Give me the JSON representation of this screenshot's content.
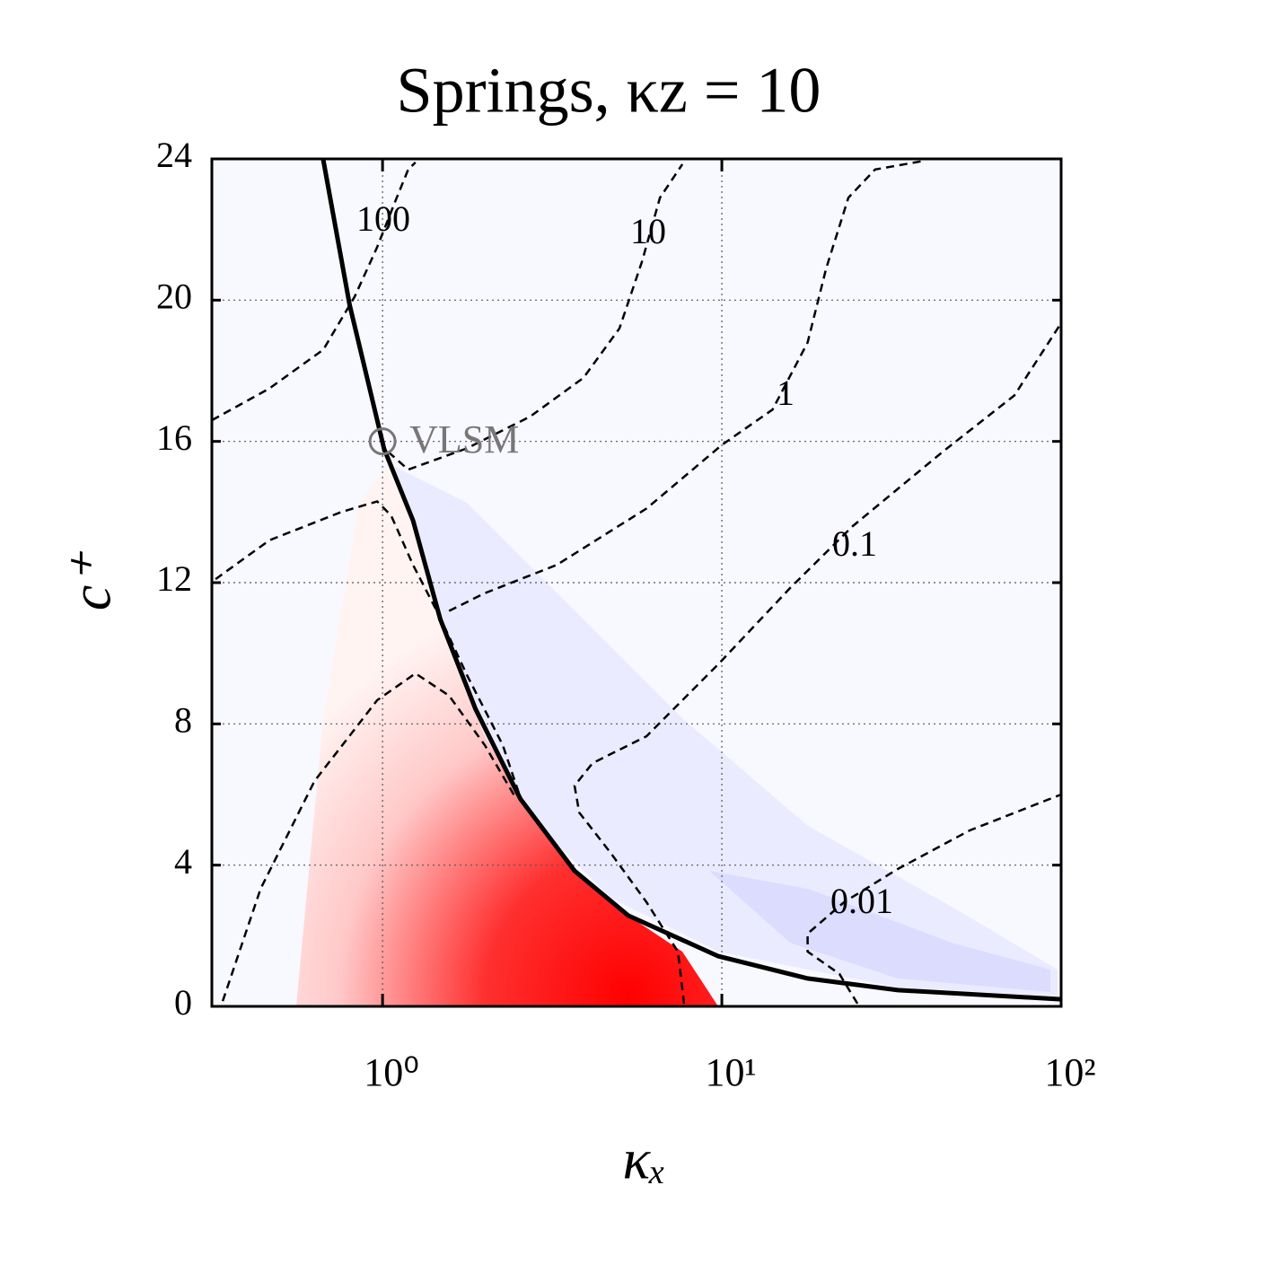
{
  "chart_data": {
    "type": "contour",
    "title": "Springs, κz = 10",
    "x_label": "κₓ",
    "y_label": "c⁺",
    "xscale": "log",
    "xlim": [
      0.314,
      100
    ],
    "ylim": [
      0,
      24
    ],
    "xticks": [
      {
        "value": 1,
        "label": "10⁰"
      },
      {
        "value": 10,
        "label": "10¹"
      },
      {
        "value": 100,
        "label": "10²"
      }
    ],
    "yticks": [
      0,
      4,
      8,
      12,
      16,
      20,
      24
    ],
    "grid": true,
    "curve": {
      "color": "#000000",
      "x": [
        0.668,
        0.8,
        1.01,
        1.23,
        1.48,
        1.88,
        2.55,
        3.68,
        5.3,
        9.76,
        17.9,
        33,
        100
      ],
      "y": [
        24,
        19.86,
        15.79,
        13.76,
        10.96,
        8.42,
        5.87,
        3.84,
        2.57,
        1.42,
        0.79,
        0.46,
        0.2
      ]
    },
    "contours": [
      {
        "label": "100",
        "x": [
          0.314,
          0.464,
          0.669,
          0.828,
          0.964,
          1.09,
          1.19,
          1.25
        ],
        "y": [
          16.6,
          17.5,
          18.6,
          20.1,
          21.5,
          22.8,
          23.7,
          23.9
        ]
      },
      {
        "label": "10",
        "x": [
          1.04,
          1.19,
          1.77,
          2.72,
          3.91,
          4.99,
          5.82,
          6.57,
          7.65
        ],
        "y": [
          15.7,
          15.2,
          15.8,
          16.7,
          17.8,
          19.2,
          21.1,
          22.9,
          23.85
        ]
      },
      {
        "label": "1",
        "x": [
          0.322,
          0.464,
          0.756,
          0.964,
          1.06,
          1.23,
          1.48,
          1.77,
          2.26,
          2.55,
          null,
          1.57,
          2.0,
          3.26,
          6.0,
          10,
          14.1,
          17.9,
          20.3,
          23.6,
          28.3,
          39.6
        ],
        "y": [
          12.1,
          13.2,
          14.0,
          14.3,
          13.9,
          12.5,
          11.0,
          9.4,
          7.4,
          5.9,
          null,
          11.2,
          11.7,
          12.5,
          14.1,
          15.9,
          16.9,
          18.8,
          20.9,
          22.9,
          23.7,
          23.95
        ]
      },
      {
        "label": "0.1",
        "x": [
          0.338,
          0.437,
          0.63,
          0.964,
          1.25,
          1.57,
          2.0,
          2.48,
          null,
          7.74,
          7.42,
          6.0,
          4.7,
          3.8,
          3.68,
          4.16,
          6.0,
          9.76,
          15.9,
          24.3,
          44.7,
          72.8,
          100
        ],
        "y": [
          0.15,
          3.33,
          6.38,
          8.67,
          9.43,
          8.8,
          7.4,
          5.87,
          null,
          0.08,
          1.55,
          2.95,
          4.35,
          5.49,
          6.25,
          6.89,
          7.65,
          9.69,
          11.85,
          13.6,
          15.7,
          17.3,
          19.35
        ]
      },
      {
        "label": "0.01",
        "x": [
          25.1,
          22.2,
          17.9,
          17.9,
          22.9,
          33.0,
          53.7,
          100
        ],
        "y": [
          0.08,
          0.92,
          1.55,
          2.06,
          2.95,
          3.89,
          4.98,
          6.0
        ]
      }
    ],
    "marker": {
      "label": "VLSM",
      "x": 1.0,
      "y": 16.0,
      "color": "#777777"
    }
  }
}
